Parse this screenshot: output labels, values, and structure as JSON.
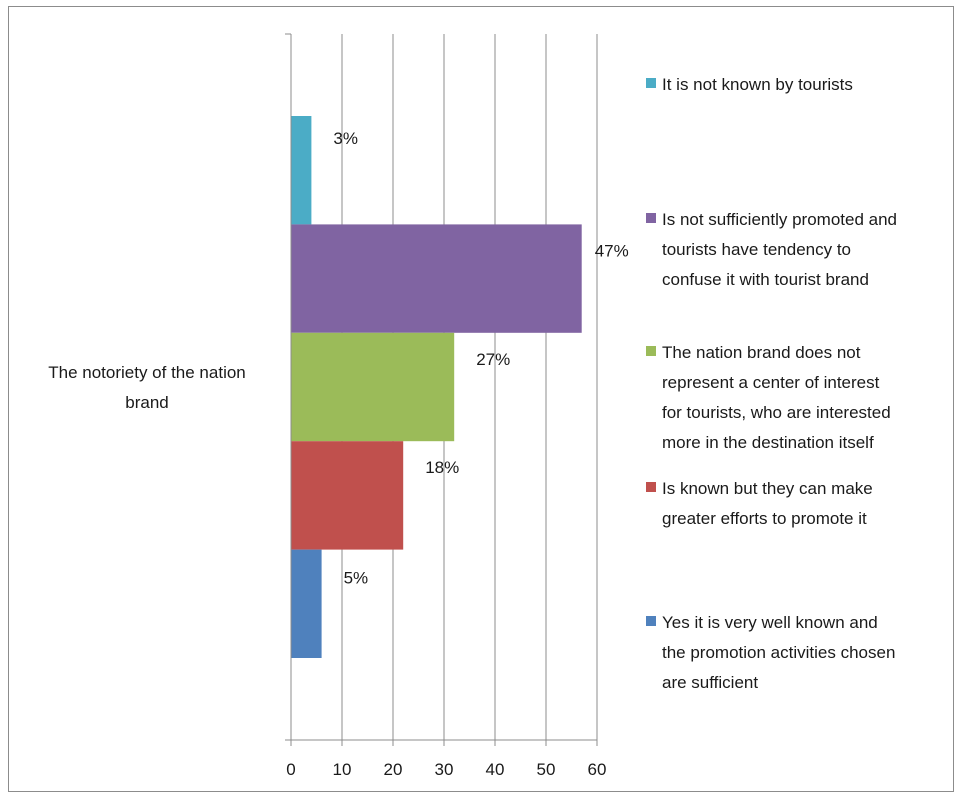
{
  "chart_data": {
    "type": "bar",
    "orientation": "horizontal",
    "category": "The notoriety of the nation brand",
    "category_lines": [
      "The notoriety of the nation",
      "brand"
    ],
    "xlim": [
      0,
      60
    ],
    "ticks": [
      0,
      10,
      20,
      30,
      40,
      50,
      60
    ],
    "grid": true,
    "legend_position": "right",
    "series": [
      {
        "name": "It is not known by tourists",
        "value": 4,
        "label": "3%",
        "color": "#4bacc6",
        "name_lines": [
          "It is not known by tourists"
        ]
      },
      {
        "name": "Is not sufficiently promoted and tourists have tendency to confuse it with tourist brand",
        "value": 57,
        "label": "47%",
        "color": "#8064a2",
        "name_lines": [
          "Is not sufficiently promoted and",
          "tourists have tendency to",
          "confuse it with tourist brand"
        ]
      },
      {
        "name": "The nation brand does not represent a center of interest for tourists, who are interested more in the destination itself",
        "value": 32,
        "label": "27%",
        "color": "#9bbb59",
        "name_lines": [
          "The nation brand does not",
          "represent a center of interest",
          "for tourists, who are interested",
          "more in the destination itself"
        ]
      },
      {
        "name": "Is known but they can make greater efforts to promote it",
        "value": 22,
        "label": "18%",
        "color": "#c0504d",
        "name_lines": [
          "Is known but they can make",
          "greater efforts to promote it"
        ]
      },
      {
        "name": "Yes it is very well known and the promotion activities chosen are sufficient",
        "value": 6,
        "label": "5%",
        "color": "#4f81bd",
        "name_lines": [
          "Yes it is very well known and",
          "the promotion activities chosen",
          "are sufficient"
        ]
      }
    ]
  }
}
